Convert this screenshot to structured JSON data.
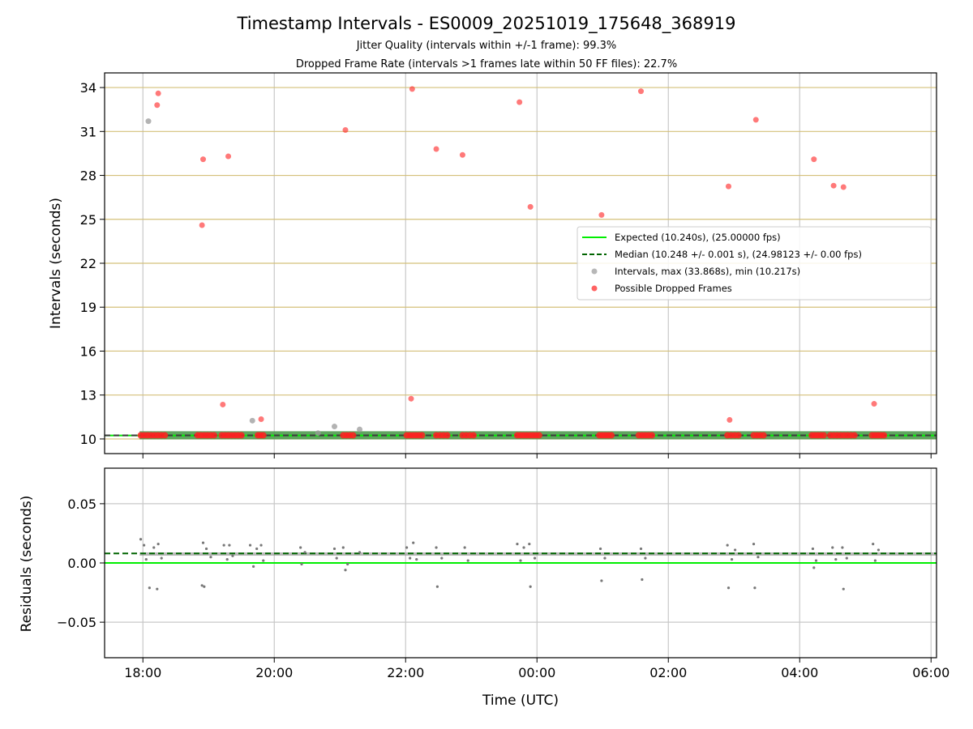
{
  "chart_data": [
    {
      "type": "scatter",
      "title": "Timestamp Intervals - ES0009_20251019_175648_368919",
      "subtitle_1": "Jitter Quality (intervals within +/-1 frame): 99.3%",
      "subtitle_2": "Dropped Frame Rate (intervals >1 frames late within 50 FF files): 22.7%",
      "ylabel": "Intervals (seconds)",
      "ylim": [
        9.0,
        35.0
      ],
      "yticks": [
        10,
        13,
        16,
        19,
        22,
        25,
        28,
        31,
        34
      ],
      "ytick_labels": [
        "10",
        "13",
        "16",
        "19",
        "22",
        "25",
        "28",
        "31",
        "34"
      ],
      "x_axis": "time (UTC)",
      "xlim": [
        "17:25",
        "06:05"
      ],
      "grid": "x gray, y gold",
      "legend": "center-right",
      "legend_entries": [
        {
          "label": "Expected (10.240s), (25.00000 fps)",
          "kind": "line",
          "color": "#00ee00"
        },
        {
          "label": "Median (10.248 +/- 0.001 s), (24.98123 +/- 0.00 fps)",
          "kind": "dashed-line",
          "color": "#006400"
        },
        {
          "label": "Intervals, max (33.868s), min (10.217s)",
          "kind": "marker",
          "color": "#999999"
        },
        {
          "label": "Possible Dropped Frames",
          "kind": "marker",
          "color": "#ff2020"
        }
      ],
      "series": [
        {
          "name": "Expected (10.240s), (25.00000 fps)",
          "kind": "hline",
          "y": 10.24,
          "color": "#00ee00"
        },
        {
          "name": "Median (10.248 +/- 0.001 s), (24.98123 +/- 0.00 fps)",
          "kind": "hline",
          "y": 10.248,
          "color": "#006400"
        },
        {
          "name": "Intervals, max (33.868s), min (10.217s)",
          "kind": "scatter",
          "color": "#999999",
          "points": [
            {
              "x": "18:05",
              "y": 31.7
            },
            {
              "x": "19:40",
              "y": 11.25
            },
            {
              "x": "20:40",
              "y": 10.4
            },
            {
              "x": "20:55",
              "y": 10.85
            },
            {
              "x": "21:18",
              "y": 10.65
            }
          ],
          "band": {
            "from": "17:57",
            "to": "06:05",
            "y": 10.25
          }
        },
        {
          "name": "Possible Dropped Frames",
          "kind": "scatter",
          "color": "#ff2020",
          "points": [
            {
              "x": "18:13",
              "y": 32.8
            },
            {
              "x": "18:14",
              "y": 33.6
            },
            {
              "x": "18:54",
              "y": 24.6
            },
            {
              "x": "18:55",
              "y": 29.1
            },
            {
              "x": "19:13",
              "y": 12.35
            },
            {
              "x": "19:18",
              "y": 29.3
            },
            {
              "x": "19:48",
              "y": 11.35
            },
            {
              "x": "21:05",
              "y": 31.1
            },
            {
              "x": "22:05",
              "y": 12.75
            },
            {
              "x": "22:06",
              "y": 33.9
            },
            {
              "x": "22:28",
              "y": 29.8
            },
            {
              "x": "22:52",
              "y": 29.4
            },
            {
              "x": "23:44",
              "y": 33.0
            },
            {
              "x": "23:54",
              "y": 25.85
            },
            {
              "x": "00:59",
              "y": 25.3
            },
            {
              "x": "01:35",
              "y": 33.75
            },
            {
              "x": "02:55",
              "y": 27.25
            },
            {
              "x": "02:56",
              "y": 11.3
            },
            {
              "x": "03:20",
              "y": 31.8
            },
            {
              "x": "04:13",
              "y": 29.1
            },
            {
              "x": "04:31",
              "y": 27.3
            },
            {
              "x": "04:40",
              "y": 27.2
            },
            {
              "x": "05:08",
              "y": 12.4
            }
          ],
          "clusters": [
            {
              "from": "17:58",
              "to": "18:20",
              "y": 10.25
            },
            {
              "from": "18:50",
              "to": "19:05",
              "y": 10.25
            },
            {
              "from": "19:12",
              "to": "19:30",
              "y": 10.25
            },
            {
              "from": "19:45",
              "to": "19:50",
              "y": 10.25
            },
            {
              "from": "21:03",
              "to": "21:12",
              "y": 10.25
            },
            {
              "from": "22:01",
              "to": "22:15",
              "y": 10.25
            },
            {
              "from": "22:28",
              "to": "22:38",
              "y": 10.25
            },
            {
              "from": "22:52",
              "to": "23:02",
              "y": 10.25
            },
            {
              "from": "23:42",
              "to": "00:02",
              "y": 10.25
            },
            {
              "from": "00:57",
              "to": "01:08",
              "y": 10.25
            },
            {
              "from": "01:33",
              "to": "01:45",
              "y": 10.25
            },
            {
              "from": "02:54",
              "to": "03:04",
              "y": 10.25
            },
            {
              "from": "03:18",
              "to": "03:27",
              "y": 10.25
            },
            {
              "from": "04:11",
              "to": "04:22",
              "y": 10.25
            },
            {
              "from": "04:28",
              "to": "04:50",
              "y": 10.25
            },
            {
              "from": "05:06",
              "to": "05:17",
              "y": 10.25
            }
          ]
        }
      ]
    },
    {
      "type": "scatter",
      "title": "",
      "xlabel": "Time (UTC)",
      "ylabel": "Residuals (seconds)",
      "ylim": [
        -0.08,
        0.08
      ],
      "yticks": [
        -0.05,
        0.0,
        0.05
      ],
      "ytick_labels": [
        "−0.05",
        "0.00",
        "0.05"
      ],
      "xlim": [
        "17:25",
        "06:05"
      ],
      "xticks": [
        "18:00",
        "20:00",
        "22:00",
        "00:00",
        "02:00",
        "04:00",
        "06:00"
      ],
      "xtick_labels": [
        "18:00",
        "20:00",
        "22:00",
        "00:00",
        "02:00",
        "04:00",
        "06:00"
      ],
      "grid": "on",
      "series": [
        {
          "kind": "hline",
          "y": 0.0,
          "color": "#00ee00"
        },
        {
          "kind": "hline",
          "y": 0.008,
          "color": "#006400",
          "style": "dashed"
        },
        {
          "kind": "scatter",
          "color": "#777777",
          "points": [
            {
              "x": "17:58",
              "y": 0.02
            },
            {
              "x": "18:01",
              "y": 0.015
            },
            {
              "x": "18:03",
              "y": 0.003
            },
            {
              "x": "18:06",
              "y": -0.021
            },
            {
              "x": "18:10",
              "y": 0.013
            },
            {
              "x": "18:13",
              "y": -0.022
            },
            {
              "x": "18:14",
              "y": 0.016
            },
            {
              "x": "18:17",
              "y": 0.004
            },
            {
              "x": "18:55",
              "y": 0.017
            },
            {
              "x": "18:54",
              "y": -0.019
            },
            {
              "x": "18:56",
              "y": -0.02
            },
            {
              "x": "18:58",
              "y": 0.012
            },
            {
              "x": "19:02",
              "y": 0.005
            },
            {
              "x": "19:14",
              "y": 0.015
            },
            {
              "x": "19:17",
              "y": 0.003
            },
            {
              "x": "19:19",
              "y": 0.015
            },
            {
              "x": "19:22",
              "y": 0.006
            },
            {
              "x": "19:38",
              "y": 0.015
            },
            {
              "x": "19:41",
              "y": -0.003
            },
            {
              "x": "19:44",
              "y": 0.012
            },
            {
              "x": "19:48",
              "y": 0.015
            },
            {
              "x": "19:50",
              "y": 0.002
            },
            {
              "x": "20:24",
              "y": 0.013
            },
            {
              "x": "20:25",
              "y": -0.001
            },
            {
              "x": "20:28",
              "y": 0.009
            },
            {
              "x": "20:55",
              "y": 0.012
            },
            {
              "x": "20:57",
              "y": 0.004
            },
            {
              "x": "21:03",
              "y": 0.013
            },
            {
              "x": "21:05",
              "y": -0.006
            },
            {
              "x": "21:07",
              "y": -0.001
            },
            {
              "x": "21:18",
              "y": 0.009
            },
            {
              "x": "22:01",
              "y": 0.013
            },
            {
              "x": "22:04",
              "y": 0.004
            },
            {
              "x": "22:07",
              "y": 0.017
            },
            {
              "x": "22:10",
              "y": 0.003
            },
            {
              "x": "22:28",
              "y": 0.013
            },
            {
              "x": "22:29",
              "y": -0.02
            },
            {
              "x": "22:33",
              "y": 0.004
            },
            {
              "x": "22:54",
              "y": 0.013
            },
            {
              "x": "22:57",
              "y": 0.002
            },
            {
              "x": "23:42",
              "y": 0.016
            },
            {
              "x": "23:45",
              "y": 0.002
            },
            {
              "x": "23:48",
              "y": 0.013
            },
            {
              "x": "23:53",
              "y": 0.016
            },
            {
              "x": "23:54",
              "y": -0.02
            },
            {
              "x": "23:58",
              "y": 0.004
            },
            {
              "x": "00:58",
              "y": 0.012
            },
            {
              "x": "00:59",
              "y": -0.015
            },
            {
              "x": "01:02",
              "y": 0.004
            },
            {
              "x": "01:35",
              "y": 0.012
            },
            {
              "x": "01:36",
              "y": -0.014
            },
            {
              "x": "01:39",
              "y": 0.004
            },
            {
              "x": "02:54",
              "y": 0.015
            },
            {
              "x": "02:55",
              "y": -0.021
            },
            {
              "x": "02:58",
              "y": 0.003
            },
            {
              "x": "03:01",
              "y": 0.011
            },
            {
              "x": "03:18",
              "y": 0.016
            },
            {
              "x": "03:19",
              "y": -0.021
            },
            {
              "x": "03:22",
              "y": 0.005
            },
            {
              "x": "04:12",
              "y": 0.012
            },
            {
              "x": "04:13",
              "y": -0.004
            },
            {
              "x": "04:15",
              "y": 0.002
            },
            {
              "x": "04:30",
              "y": 0.013
            },
            {
              "x": "04:33",
              "y": 0.003
            },
            {
              "x": "04:39",
              "y": 0.013
            },
            {
              "x": "04:40",
              "y": -0.022
            },
            {
              "x": "04:43",
              "y": 0.004
            },
            {
              "x": "05:07",
              "y": 0.016
            },
            {
              "x": "05:09",
              "y": 0.002
            },
            {
              "x": "05:12",
              "y": 0.011
            }
          ],
          "band": {
            "from": "17:57",
            "to": "06:05",
            "y": 0.0075
          }
        }
      ]
    }
  ]
}
